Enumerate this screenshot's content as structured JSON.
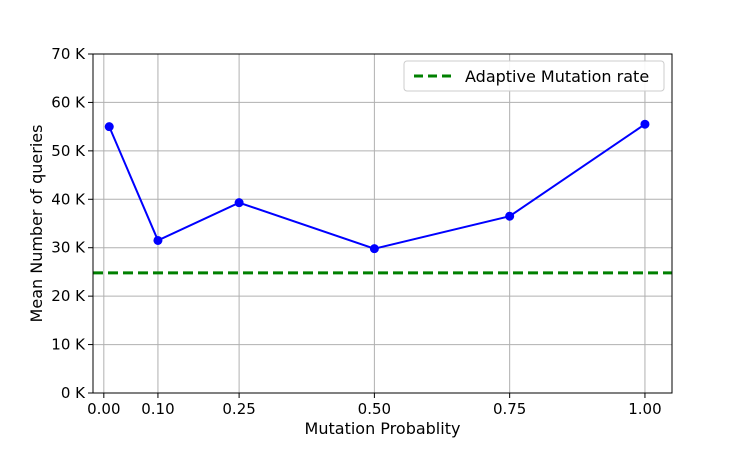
{
  "chart_data": {
    "type": "line",
    "xlabel": "Mutation Probablity",
    "ylabel": "Mean Number of queries",
    "xlim": [
      -0.02,
      1.05
    ],
    "ylim": [
      0,
      70000
    ],
    "x_ticks": [
      0.0,
      0.1,
      0.25,
      0.5,
      0.75,
      1.0
    ],
    "x_tick_labels": [
      "0.00",
      "0.10",
      "0.25",
      "0.50",
      "0.75",
      "1.00"
    ],
    "y_ticks": [
      0,
      10000,
      20000,
      30000,
      40000,
      50000,
      60000,
      70000
    ],
    "y_tick_labels": [
      "0 K",
      "10 K",
      "20 K",
      "30 K",
      "40 K",
      "50 K",
      "60 K",
      "70 K"
    ],
    "grid": true,
    "legend_position": "top-right",
    "series": [
      {
        "style": "solid-line-with-markers",
        "color": "#0000ff",
        "x": [
          0.01,
          0.1,
          0.25,
          0.5,
          0.75,
          1.0
        ],
        "y": [
          55000,
          31500,
          39300,
          29800,
          36500,
          55500
        ]
      }
    ],
    "reference_lines": [
      {
        "name": "Adaptive Mutation rate",
        "style": "dashed",
        "color": "#008000",
        "y": 24800
      }
    ]
  }
}
